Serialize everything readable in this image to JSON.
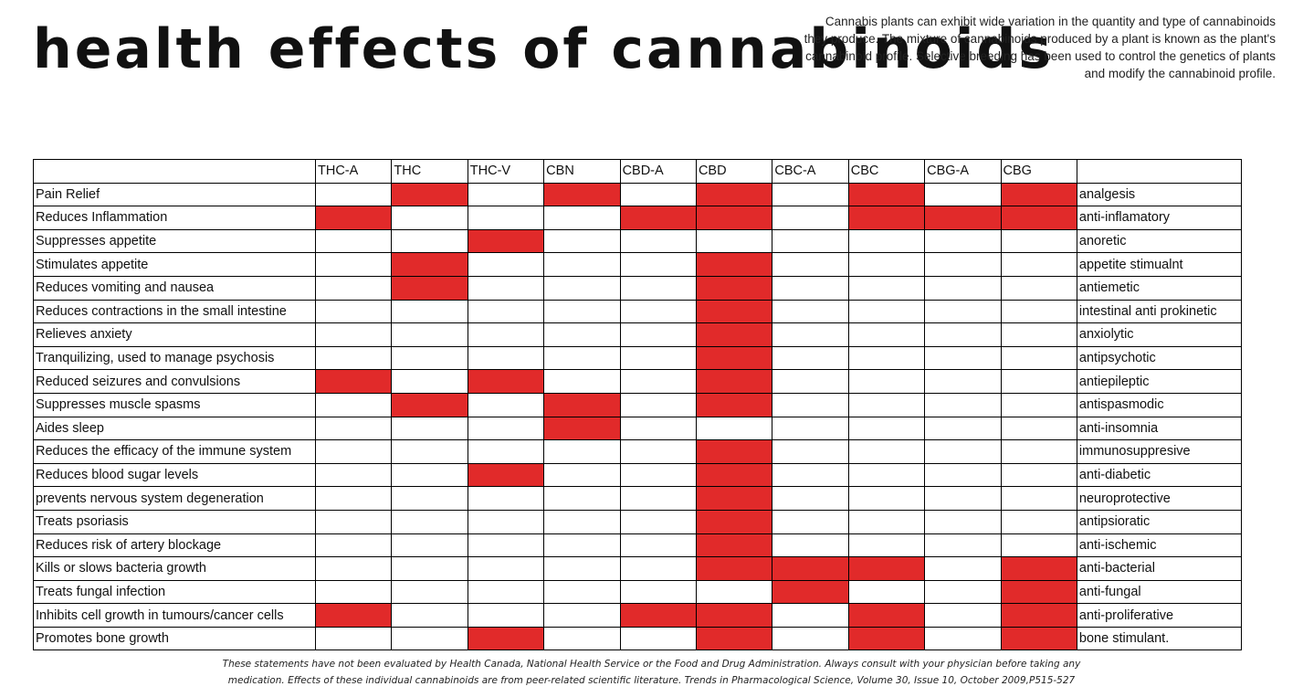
{
  "title": "health effects of cannabinoids",
  "intro": "Cannabis plants can exhibit wide variation in the quantity and type of cannabinoids they produce. The mixture of cannabinoids produced by a plant is known as the plant's cannabinoid profile. Selective breeding has been used to control the genetics of plants and modify the cannabinoid profile.",
  "highlight_color": "#e12a2a",
  "table": {
    "columns": [
      "THC-A",
      "THC",
      "THC-V",
      "CBN",
      "CBD-A",
      "CBD",
      "CBC-A",
      "CBC",
      "CBG-A",
      "CBG"
    ],
    "rows": [
      {
        "effect": "Pain Relief",
        "term": "analgesis",
        "marks": [
          0,
          1,
          0,
          1,
          0,
          1,
          0,
          1,
          0,
          1
        ]
      },
      {
        "effect": "Reduces Inflammation",
        "term": "anti-inflamatory",
        "marks": [
          1,
          0,
          0,
          0,
          1,
          1,
          0,
          1,
          1,
          1
        ]
      },
      {
        "effect": "Suppresses appetite",
        "term": "anoretic",
        "marks": [
          0,
          0,
          1,
          0,
          0,
          0,
          0,
          0,
          0,
          0
        ]
      },
      {
        "effect": "Stimulates appetite",
        "term": "appetite stimualnt",
        "marks": [
          0,
          1,
          0,
          0,
          0,
          1,
          0,
          0,
          0,
          0
        ]
      },
      {
        "effect": "Reduces vomiting and nausea",
        "term": "antiemetic",
        "marks": [
          0,
          1,
          0,
          0,
          0,
          1,
          0,
          0,
          0,
          0
        ]
      },
      {
        "effect": "Reduces contractions in the small intestine",
        "term": "intestinal anti prokinetic",
        "marks": [
          0,
          0,
          0,
          0,
          0,
          1,
          0,
          0,
          0,
          0
        ]
      },
      {
        "effect": "Relieves anxiety",
        "term": "anxiolytic",
        "marks": [
          0,
          0,
          0,
          0,
          0,
          1,
          0,
          0,
          0,
          0
        ]
      },
      {
        "effect": "Tranquilizing, used to manage psychosis",
        "term": "antipsychotic",
        "marks": [
          0,
          0,
          0,
          0,
          0,
          1,
          0,
          0,
          0,
          0
        ]
      },
      {
        "effect": "Reduced seizures and convulsions",
        "term": "antiepileptic",
        "marks": [
          1,
          0,
          1,
          0,
          0,
          1,
          0,
          0,
          0,
          0
        ]
      },
      {
        "effect": "Suppresses muscle spasms",
        "term": "antispasmodic",
        "marks": [
          0,
          1,
          0,
          1,
          0,
          1,
          0,
          0,
          0,
          0
        ]
      },
      {
        "effect": "Aides sleep",
        "term": "anti-insomnia",
        "marks": [
          0,
          0,
          0,
          1,
          0,
          0,
          0,
          0,
          0,
          0
        ]
      },
      {
        "effect": "Reduces the efficacy of the immune system",
        "term": "immunosuppresive",
        "marks": [
          0,
          0,
          0,
          0,
          0,
          1,
          0,
          0,
          0,
          0
        ]
      },
      {
        "effect": "Reduces blood sugar levels",
        "term": "anti-diabetic",
        "marks": [
          0,
          0,
          1,
          0,
          0,
          1,
          0,
          0,
          0,
          0
        ]
      },
      {
        "effect": "prevents nervous system degeneration",
        "term": "neuroprotective",
        "marks": [
          0,
          0,
          0,
          0,
          0,
          1,
          0,
          0,
          0,
          0
        ]
      },
      {
        "effect": "Treats psoriasis",
        "term": "antipsioratic",
        "marks": [
          0,
          0,
          0,
          0,
          0,
          1,
          0,
          0,
          0,
          0
        ]
      },
      {
        "effect": "Reduces risk of artery blockage",
        "term": "anti-ischemic",
        "marks": [
          0,
          0,
          0,
          0,
          0,
          1,
          0,
          0,
          0,
          0
        ]
      },
      {
        "effect": "Kills or slows bacteria growth",
        "term": "anti-bacterial",
        "marks": [
          0,
          0,
          0,
          0,
          0,
          1,
          1,
          1,
          0,
          1
        ]
      },
      {
        "effect": "Treats fungal infection",
        "term": "anti-fungal",
        "marks": [
          0,
          0,
          0,
          0,
          0,
          0,
          1,
          0,
          0,
          1
        ]
      },
      {
        "effect": "Inhibits cell growth in tumours/cancer cells",
        "term": "anti-proliferative",
        "marks": [
          1,
          0,
          0,
          0,
          1,
          1,
          0,
          1,
          0,
          1
        ]
      },
      {
        "effect": "Promotes bone growth",
        "term": "bone stimulant.",
        "marks": [
          0,
          0,
          1,
          0,
          0,
          1,
          0,
          1,
          0,
          1
        ]
      }
    ]
  },
  "footer": {
    "line1": "These statements have not been evaluated by Health Canada, National Health Service or the Food and Drug Administration. Always consult with your physician before taking any",
    "line2": "medication. Effects of these individual cannabinoids are from peer-related scientific literature. Trends in Pharmacological Science, Volume 30, Issue 10, October 2009,P515-527"
  }
}
